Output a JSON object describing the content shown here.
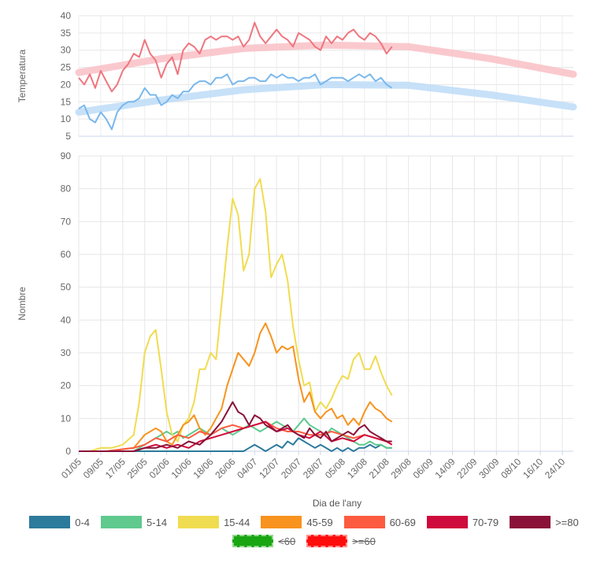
{
  "chart_data": [
    {
      "type": "line",
      "ylabel": "Temperatura",
      "ylim": [
        5,
        40
      ],
      "yticks": [
        5,
        10,
        15,
        20,
        25,
        30,
        35,
        40
      ],
      "xlim": [
        0,
        180
      ],
      "grid": true,
      "series": [
        {
          "key": "tmax_normal",
          "color": "#f9c0c5",
          "style": "band",
          "x": [
            0,
            30,
            60,
            90,
            120,
            150,
            180
          ],
          "values": [
            23.5,
            27.5,
            30.5,
            31.5,
            31.0,
            27.5,
            23.0
          ]
        },
        {
          "key": "tmin_normal",
          "color": "#bddcf7",
          "style": "band",
          "x": [
            0,
            30,
            60,
            90,
            120,
            150,
            180
          ],
          "values": [
            12.0,
            15.5,
            18.5,
            20.0,
            19.8,
            17.0,
            13.5
          ]
        },
        {
          "key": "tmax",
          "color": "#ef767f",
          "style": "line",
          "x": [
            0,
            2,
            4,
            6,
            8,
            10,
            12,
            14,
            16,
            18,
            20,
            22,
            24,
            26,
            28,
            30,
            32,
            34,
            36,
            38,
            40,
            42,
            44,
            46,
            48,
            50,
            52,
            54,
            56,
            58,
            60,
            62,
            64,
            66,
            68,
            70,
            72,
            74,
            76,
            78,
            80,
            82,
            84,
            86,
            88,
            90,
            92,
            94,
            96,
            98,
            100,
            102,
            104,
            106,
            108,
            110,
            112,
            114
          ],
          "values": [
            22,
            20,
            23,
            19,
            24,
            21,
            18,
            20,
            24,
            26,
            29,
            28,
            33,
            29,
            27,
            22,
            26,
            28,
            23,
            30,
            32,
            31,
            29,
            33,
            34,
            33,
            34,
            34,
            33,
            34,
            31,
            33,
            38,
            34,
            32,
            34,
            36,
            34,
            33,
            31,
            35,
            34,
            33,
            31,
            30,
            34,
            32,
            34,
            33,
            35,
            36,
            34,
            33,
            35,
            34,
            32,
            29,
            31
          ]
        },
        {
          "key": "tmin",
          "color": "#7ab8ec",
          "style": "line",
          "x": [
            0,
            2,
            4,
            6,
            8,
            10,
            12,
            14,
            16,
            18,
            20,
            22,
            24,
            26,
            28,
            30,
            32,
            34,
            36,
            38,
            40,
            42,
            44,
            46,
            48,
            50,
            52,
            54,
            56,
            58,
            60,
            62,
            64,
            66,
            68,
            70,
            72,
            74,
            76,
            78,
            80,
            82,
            84,
            86,
            88,
            90,
            92,
            94,
            96,
            98,
            100,
            102,
            104,
            106,
            108,
            110,
            112,
            114
          ],
          "values": [
            13,
            14,
            10,
            9,
            12,
            10,
            7,
            12,
            14,
            15,
            15,
            16,
            19,
            17,
            17,
            14,
            15,
            17,
            16,
            18,
            18,
            20,
            21,
            21,
            20,
            22,
            22,
            23,
            20,
            21,
            21,
            22,
            22,
            21,
            21,
            23,
            22,
            23,
            22,
            22,
            21,
            22,
            22,
            23,
            20,
            21,
            22,
            22,
            22,
            21,
            22,
            23,
            22,
            23,
            21,
            22,
            20,
            19
          ]
        }
      ]
    },
    {
      "type": "line",
      "ylabel": "Nombre",
      "xlabel": "Dia de l'any",
      "ylim": [
        0,
        90
      ],
      "yticks": [
        0,
        10,
        20,
        30,
        40,
        50,
        60,
        70,
        80,
        90
      ],
      "xlim": [
        0,
        180
      ],
      "xticks": [
        "01/05",
        "09/05",
        "17/05",
        "25/05",
        "02/06",
        "10/06",
        "18/06",
        "26/06",
        "04/07",
        "12/07",
        "20/07",
        "28/07",
        "05/08",
        "13/08",
        "21/08",
        "29/08",
        "06/09",
        "14/09",
        "22/09",
        "30/09",
        "08/10",
        "16/10",
        "24/10"
      ],
      "grid": true,
      "legend_position": "bottom",
      "series": [
        {
          "name": "0-4",
          "color": "#2c7a9c",
          "x": [
            0,
            10,
            20,
            30,
            40,
            50,
            60,
            62,
            64,
            66,
            68,
            70,
            72,
            74,
            76,
            78,
            80,
            82,
            84,
            86,
            88,
            90,
            92,
            94,
            96,
            98,
            100,
            102,
            104,
            106,
            108,
            110,
            112,
            114
          ],
          "values": [
            0,
            0,
            0,
            0,
            0,
            0,
            0,
            1,
            2,
            1,
            0,
            1,
            2,
            1,
            3,
            2,
            4,
            3,
            2,
            1,
            2,
            1,
            0,
            1,
            0,
            1,
            0,
            1,
            1,
            2,
            1,
            2,
            1,
            1
          ]
        },
        {
          "name": "5-14",
          "color": "#5fc98e",
          "x": [
            0,
            10,
            20,
            22,
            24,
            26,
            28,
            30,
            32,
            34,
            36,
            38,
            40,
            42,
            44,
            46,
            48,
            50,
            52,
            54,
            56,
            58,
            60,
            62,
            64,
            66,
            68,
            70,
            72,
            74,
            76,
            78,
            80,
            82,
            84,
            86,
            88,
            90,
            92,
            94,
            96,
            98,
            100,
            102,
            104,
            106,
            108,
            110,
            112,
            114
          ],
          "values": [
            0,
            0,
            0,
            1,
            2,
            3,
            4,
            5,
            6,
            5,
            6,
            4,
            5,
            6,
            7,
            6,
            5,
            6,
            7,
            6,
            5,
            6,
            7,
            8,
            7,
            6,
            7,
            8,
            9,
            8,
            7,
            6,
            8,
            10,
            8,
            7,
            6,
            5,
            7,
            6,
            5,
            4,
            3,
            2,
            2,
            3,
            2,
            2,
            1,
            1
          ]
        },
        {
          "name": "15-44",
          "color": "#f0dc50",
          "x": [
            0,
            4,
            8,
            12,
            16,
            20,
            22,
            24,
            26,
            28,
            30,
            32,
            34,
            36,
            38,
            40,
            42,
            44,
            46,
            48,
            50,
            52,
            54,
            56,
            58,
            60,
            62,
            64,
            66,
            68,
            70,
            72,
            74,
            76,
            78,
            80,
            82,
            84,
            86,
            88,
            90,
            92,
            94,
            96,
            98,
            100,
            102,
            104,
            106,
            108,
            110,
            112,
            114
          ],
          "values": [
            0,
            0,
            1,
            1,
            2,
            5,
            15,
            30,
            35,
            37,
            25,
            12,
            5,
            3,
            8,
            10,
            15,
            25,
            25,
            30,
            28,
            45,
            62,
            77,
            72,
            55,
            60,
            80,
            83,
            73,
            53,
            57,
            60,
            52,
            38,
            28,
            20,
            21,
            12,
            15,
            13,
            16,
            20,
            23,
            22,
            28,
            30,
            25,
            25,
            29,
            24,
            20,
            17
          ]
        },
        {
          "name": "45-59",
          "color": "#f7931e",
          "x": [
            0,
            10,
            20,
            22,
            24,
            26,
            28,
            30,
            32,
            34,
            36,
            38,
            40,
            42,
            44,
            46,
            48,
            50,
            52,
            54,
            56,
            58,
            60,
            62,
            64,
            66,
            68,
            70,
            72,
            74,
            76,
            78,
            80,
            82,
            84,
            86,
            88,
            90,
            92,
            94,
            96,
            98,
            100,
            102,
            104,
            106,
            108,
            110,
            112,
            114
          ],
          "values": [
            0,
            0,
            1,
            3,
            5,
            6,
            7,
            6,
            3,
            2,
            5,
            8,
            9,
            11,
            7,
            5,
            7,
            10,
            13,
            20,
            25,
            30,
            28,
            26,
            30,
            36,
            39,
            35,
            30,
            32,
            31,
            32,
            22,
            15,
            18,
            12,
            10,
            12,
            13,
            10,
            11,
            8,
            10,
            8,
            12,
            15,
            13,
            12,
            10,
            9
          ]
        },
        {
          "name": "60-69",
          "color": "#fc5b3f",
          "x": [
            0,
            10,
            20,
            24,
            28,
            32,
            36,
            40,
            44,
            48,
            52,
            56,
            60,
            64,
            68,
            72,
            76,
            80,
            84,
            88,
            92,
            96,
            100,
            104,
            108,
            112,
            114
          ],
          "values": [
            0,
            0,
            1,
            2,
            4,
            3,
            5,
            4,
            6,
            5,
            7,
            8,
            7,
            8,
            9,
            7,
            6,
            6,
            5,
            5,
            6,
            5,
            4,
            5,
            4,
            3,
            2
          ]
        },
        {
          "name": "70-79",
          "color": "#cf0a3c",
          "x": [
            0,
            10,
            20,
            24,
            28,
            32,
            36,
            40,
            44,
            48,
            52,
            56,
            60,
            64,
            68,
            72,
            76,
            80,
            84,
            88,
            92,
            96,
            100,
            104,
            108,
            112,
            114
          ],
          "values": [
            0,
            0,
            0,
            1,
            2,
            1,
            2,
            1,
            3,
            4,
            5,
            6,
            7,
            8,
            9,
            6,
            7,
            5,
            4,
            6,
            3,
            4,
            3,
            5,
            4,
            3,
            2
          ]
        },
        {
          "name": ">=80",
          "color": "#8a1238",
          "x": [
            0,
            10,
            20,
            24,
            28,
            32,
            36,
            40,
            44,
            48,
            52,
            54,
            56,
            58,
            60,
            62,
            64,
            66,
            68,
            70,
            72,
            74,
            76,
            78,
            80,
            82,
            84,
            86,
            88,
            90,
            92,
            94,
            96,
            98,
            100,
            102,
            104,
            106,
            108,
            110,
            112,
            114
          ],
          "values": [
            0,
            0,
            0,
            1,
            1,
            2,
            1,
            3,
            2,
            5,
            9,
            12,
            15,
            12,
            11,
            8,
            11,
            10,
            8,
            7,
            6,
            7,
            8,
            6,
            5,
            4,
            7,
            5,
            4,
            6,
            3,
            4,
            5,
            6,
            5,
            7,
            8,
            6,
            5,
            4,
            3,
            3
          ]
        }
      ],
      "extra_legend": [
        {
          "name": "<60",
          "color": "#19a612",
          "struck": true
        },
        {
          "name": ">=60",
          "color": "#ff0c0c",
          "struck": true
        }
      ]
    }
  ]
}
